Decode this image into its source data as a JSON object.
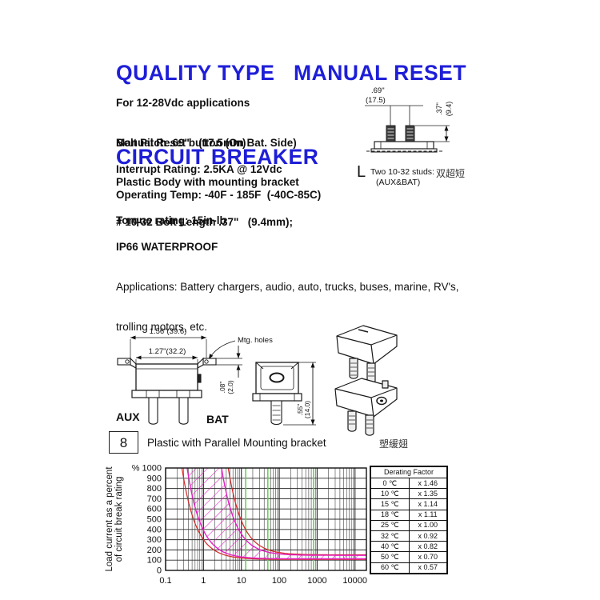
{
  "header": {
    "title_line1": "QUALITY TYPE   MANUAL RESET",
    "title_line2": "CIRCUIT BREAKER",
    "title_color": "#1e1ed8"
  },
  "specs": {
    "group1": [
      "For 12-28Vdc applications",
      "Manual Reset button (On Bat. Side)",
      "Plastic Body with mounting bracket",
      "# 10-32 Bolt Length .37\"   (9.4mm);"
    ],
    "bolt_pitch": "Bolt Pitch .69\"   (17.5mm)",
    "interrupt": "Interrupt Rating: 2.5KA @ 12Vdc",
    "operating": "Operating Temp: -40F - 185F  (-40C-85C)",
    "torque": "Torque rating: 15in-lb",
    "ip": "IP66 WATERPROOF",
    "applications_line1": "Applications: Battery chargers, audio, auto, trucks, buses, marine, RV's,",
    "applications_line2": "trolling motors, etc."
  },
  "stud_diagram": {
    "dim_pitch_in": ".69\"",
    "dim_pitch_mm": "(17.5)",
    "dim_len_in": ".37\"",
    "dim_len_mm": "(9.4)",
    "note_prefix": "L",
    "note": "Two 10-32 studs:",
    "note_cn": "双超短",
    "note_sub": "(AUX&BAT)"
  },
  "outline_drawing": {
    "dim_outer": "1.56\"(39.6)",
    "dim_inner": "1.27\"(32.2)",
    "mtg_holes": "Mtg. holes",
    "aux": "AUX",
    "bat": "BAT",
    "dim_flange_in": ".08\"",
    "dim_flange_mm": "(2.0)",
    "dim_stud_in": ".55\"",
    "dim_stud_mm": "(14.0)"
  },
  "bracket_row": {
    "number": "8",
    "label": "Plastic with Parallel Mounting bracket",
    "label_cn": "塑缓翅"
  },
  "chart_data": {
    "type": "line",
    "title": "",
    "xlabel": "",
    "ylabel": "Load current as a percent of circuit break rating",
    "ylabel_lines": [
      "Load current as a percent",
      "of circuit break rating"
    ],
    "x_scale": "log",
    "xlim": [
      0.1,
      20000
    ],
    "ylim": [
      0,
      1000
    ],
    "x_ticks": [
      0.1,
      1,
      10,
      100,
      1000,
      10000
    ],
    "y_ticks": [
      0,
      100,
      200,
      300,
      400,
      500,
      600,
      700,
      800,
      900,
      1000
    ],
    "y_unit": "%",
    "grid": true,
    "grid_color": "#2e2e2e",
    "green_line_color": "#5cd24a",
    "green_lines_x": [
      13,
      50,
      800
    ],
    "curves": [
      {
        "name": "trip-min-red",
        "color": "#d42a2a",
        "x_top": 0.27,
        "asymptote": 108,
        "p": 1.17
      },
      {
        "name": "trip-max-red",
        "color": "#d42a2a",
        "x_top": 4.5,
        "asymptote": 152,
        "p": 1.17
      },
      {
        "name": "trip-min-magenta",
        "color": "#e51fc4",
        "x_top": 0.37,
        "asymptote": 113,
        "p": 1.17
      },
      {
        "name": "trip-max-magenta",
        "color": "#e51fc4",
        "x_top": 3.0,
        "asymptote": 147,
        "p": 1.17
      }
    ],
    "hatch_between": [
      "trip-min-magenta",
      "trip-max-magenta"
    ],
    "legend": []
  },
  "derating_table": {
    "title": "Derating Factor",
    "rows": [
      [
        "0 ℃",
        "x 1.46"
      ],
      [
        "10 ℃",
        "x 1.35"
      ],
      [
        "15 ℃",
        "x 1.14"
      ],
      [
        "18 ℃",
        "x 1.11"
      ],
      [
        "25 ℃",
        "x 1.00"
      ],
      [
        "32 ℃",
        "x 0.92"
      ],
      [
        "40 ℃",
        "x 0.82"
      ],
      [
        "50 ℃",
        "x 0.70"
      ],
      [
        "60 ℃",
        "x 0.57"
      ]
    ]
  }
}
